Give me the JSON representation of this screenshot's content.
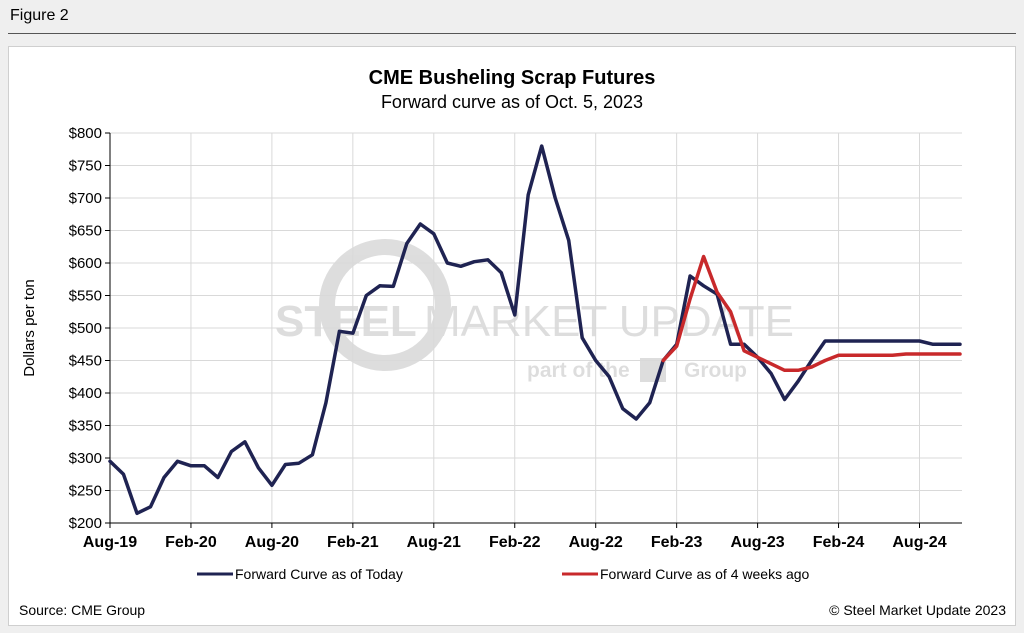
{
  "figure_label": "Figure 2",
  "source": "Source: CME Group",
  "copyright": "© Steel Market Update 2023",
  "watermark": {
    "main_left": "STEEL",
    "main_right": "MARKET UPDATE",
    "sub_left": "part of the",
    "sub_right": "Group"
  },
  "colors": {
    "today": "#1f2352",
    "four_weeks": "#c8292b",
    "grid": "#d9d9d9",
    "axis": "#000000"
  },
  "chart_data": {
    "type": "line",
    "title": "CME Busheling Scrap Futures",
    "subtitle": "Forward curve as of Oct. 5, 2023",
    "xlabel": "",
    "ylabel": "Dollars per ton",
    "ylim": [
      200,
      800
    ],
    "y_ticks": [
      200,
      250,
      300,
      350,
      400,
      450,
      500,
      550,
      600,
      650,
      700,
      750,
      800
    ],
    "y_tick_labels": [
      "$200",
      "$250",
      "$300",
      "$350",
      "$400",
      "$450",
      "$500",
      "$550",
      "$600",
      "$650",
      "$700",
      "$750",
      "$800"
    ],
    "x_tick_labels": [
      "Aug-19",
      "Feb-20",
      "Aug-20",
      "Feb-21",
      "Aug-21",
      "Feb-22",
      "Aug-22",
      "Feb-23",
      "Aug-23",
      "Feb-24",
      "Aug-24"
    ],
    "x_tick_month_index": [
      0,
      6,
      12,
      18,
      24,
      30,
      36,
      42,
      48,
      54,
      60
    ],
    "months": [
      "Aug-19",
      "Sep-19",
      "Oct-19",
      "Nov-19",
      "Dec-19",
      "Jan-20",
      "Feb-20",
      "Mar-20",
      "Apr-20",
      "May-20",
      "Jun-20",
      "Jul-20",
      "Aug-20",
      "Sep-20",
      "Oct-20",
      "Nov-20",
      "Dec-20",
      "Jan-21",
      "Feb-21",
      "Mar-21",
      "Apr-21",
      "May-21",
      "Jun-21",
      "Jul-21",
      "Aug-21",
      "Sep-21",
      "Oct-21",
      "Nov-21",
      "Dec-21",
      "Jan-22",
      "Feb-22",
      "Mar-22",
      "Apr-22",
      "May-22",
      "Jun-22",
      "Jul-22",
      "Aug-22",
      "Sep-22",
      "Oct-22",
      "Nov-22",
      "Dec-22",
      "Jan-23",
      "Feb-23",
      "Mar-23",
      "Apr-23",
      "May-23",
      "Jun-23",
      "Jul-23",
      "Aug-23",
      "Sep-23",
      "Oct-23",
      "Nov-23",
      "Dec-23",
      "Jan-24",
      "Feb-24",
      "Mar-24",
      "Apr-24",
      "May-24",
      "Jun-24",
      "Jul-24",
      "Aug-24",
      "Sep-24",
      "Oct-24",
      "Nov-24"
    ],
    "series": [
      {
        "name": "Forward Curve as of Today",
        "color": "#1f2352",
        "start_index": 0,
        "values": [
          295,
          275,
          215,
          225,
          270,
          295,
          288,
          288,
          270,
          310,
          325,
          285,
          258,
          290,
          292,
          305,
          385,
          495,
          492,
          550,
          565,
          564,
          630,
          660,
          645,
          600,
          595,
          602,
          605,
          585,
          520,
          705,
          780,
          700,
          635,
          485,
          450,
          425,
          376,
          360,
          385,
          450,
          475,
          580,
          565,
          552,
          475,
          475,
          455,
          430,
          390,
          418,
          450,
          480,
          480,
          480,
          480,
          480,
          480,
          480,
          480,
          475,
          475,
          475
        ]
      },
      {
        "name": "Forward Curve as of 4 weeks ago",
        "color": "#c8292b",
        "start_index": 41,
        "values": [
          450,
          472,
          545,
          610,
          555,
          525,
          465,
          455,
          445,
          435,
          435,
          440,
          450,
          458,
          458,
          458,
          458,
          458,
          460,
          460,
          460,
          460,
          460
        ]
      }
    ],
    "legend_position": "bottom"
  }
}
